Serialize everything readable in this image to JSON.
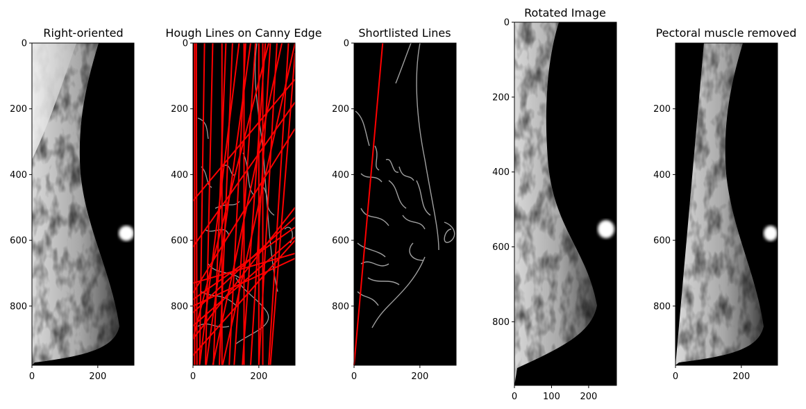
{
  "chart_data": [
    {
      "type": "image",
      "title": "Right-oriented",
      "xlim": [
        0,
        310
      ],
      "ylim": [
        980,
        0
      ],
      "xticks": [
        0,
        200
      ],
      "yticks": [
        0,
        200,
        400,
        600,
        800
      ],
      "image": "grayscale mammogram, breast facing right"
    },
    {
      "type": "image",
      "title": "Hough Lines on Canny Edge",
      "xlim": [
        0,
        310
      ],
      "ylim": [
        980,
        0
      ],
      "xticks": [
        0,
        200
      ],
      "yticks": [
        0,
        200,
        400,
        600,
        800
      ],
      "image": "canny edge map with detected hough lines",
      "line_color": "#ff0000",
      "hough_lines": [
        {
          "x1": 5,
          "y1": 0,
          "x2": 5,
          "y2": 980
        },
        {
          "x1": 10,
          "y1": 0,
          "x2": 12,
          "y2": 980
        },
        {
          "x1": 35,
          "y1": 0,
          "x2": 20,
          "y2": 980
        },
        {
          "x1": 60,
          "y1": 0,
          "x2": 38,
          "y2": 980
        },
        {
          "x1": 100,
          "y1": 0,
          "x2": 62,
          "y2": 980
        },
        {
          "x1": 120,
          "y1": 0,
          "x2": 80,
          "y2": 980
        },
        {
          "x1": 160,
          "y1": 0,
          "x2": 110,
          "y2": 980
        },
        {
          "x1": 190,
          "y1": 0,
          "x2": 125,
          "y2": 980
        },
        {
          "x1": 220,
          "y1": 0,
          "x2": 150,
          "y2": 980
        },
        {
          "x1": 235,
          "y1": 0,
          "x2": 175,
          "y2": 980
        },
        {
          "x1": 255,
          "y1": 0,
          "x2": 200,
          "y2": 980
        },
        {
          "x1": 290,
          "y1": 0,
          "x2": 230,
          "y2": 980
        },
        {
          "x1": 310,
          "y1": 30,
          "x2": 235,
          "y2": 980
        },
        {
          "x1": 88,
          "y1": 0,
          "x2": 88,
          "y2": 980
        },
        {
          "x1": 155,
          "y1": 0,
          "x2": 155,
          "y2": 980
        },
        {
          "x1": 200,
          "y1": 0,
          "x2": 200,
          "y2": 980
        },
        {
          "x1": 212,
          "y1": 0,
          "x2": 212,
          "y2": 980
        },
        {
          "x1": 310,
          "y1": 110,
          "x2": 0,
          "y2": 480
        },
        {
          "x1": 310,
          "y1": 180,
          "x2": 0,
          "y2": 620
        },
        {
          "x1": 310,
          "y1": 260,
          "x2": 0,
          "y2": 760
        },
        {
          "x1": 310,
          "y1": 500,
          "x2": 0,
          "y2": 900
        },
        {
          "x1": 310,
          "y1": 530,
          "x2": 0,
          "y2": 820
        },
        {
          "x1": 310,
          "y1": 560,
          "x2": 0,
          "y2": 780
        },
        {
          "x1": 310,
          "y1": 590,
          "x2": 0,
          "y2": 860
        },
        {
          "x1": 310,
          "y1": 640,
          "x2": 0,
          "y2": 730
        },
        {
          "x1": 310,
          "y1": 655,
          "x2": 0,
          "y2": 800
        },
        {
          "x1": 310,
          "y1": 600,
          "x2": 0,
          "y2": 950
        },
        {
          "x1": 230,
          "y1": 0,
          "x2": 0,
          "y2": 900
        },
        {
          "x1": 175,
          "y1": 0,
          "x2": 40,
          "y2": 980
        },
        {
          "x1": 310,
          "y1": 0,
          "x2": 90,
          "y2": 980
        },
        {
          "x1": 270,
          "y1": 0,
          "x2": 60,
          "y2": 980
        },
        {
          "x1": 140,
          "y1": 0,
          "x2": 20,
          "y2": 980
        }
      ]
    },
    {
      "type": "image",
      "title": "Shortlisted Lines",
      "xlim": [
        0,
        310
      ],
      "ylim": [
        980,
        0
      ],
      "xticks": [
        0,
        200
      ],
      "yticks": [
        0,
        200,
        400,
        600,
        800
      ],
      "image": "canny edge map with the selected line",
      "line_color": "#ff0000",
      "selected_line": {
        "x1": 87,
        "y1": 0,
        "x2": 0,
        "y2": 980
      }
    },
    {
      "type": "image",
      "title": "Rotated Image",
      "xlim": [
        0,
        275
      ],
      "ylim": [
        970,
        0
      ],
      "xticks": [
        0,
        100,
        200
      ],
      "yticks": [
        0,
        200,
        400,
        600,
        800
      ],
      "image": "rotated grayscale mammogram"
    },
    {
      "type": "image",
      "title": "Pectoral muscle removed",
      "xlim": [
        0,
        310
      ],
      "ylim": [
        980,
        0
      ],
      "xticks": [
        0,
        200
      ],
      "yticks": [
        200,
        400,
        600,
        800
      ],
      "image": "mammogram with pectoral muscle region blacked out"
    }
  ]
}
